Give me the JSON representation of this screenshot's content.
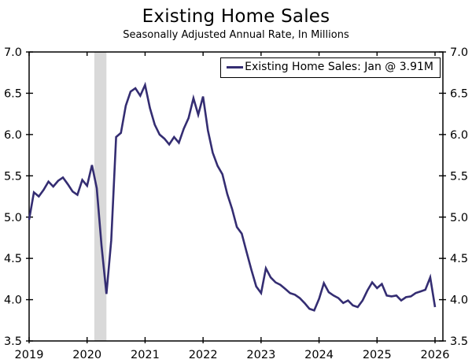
{
  "header": {
    "title": "Existing Home Sales",
    "subtitle": "Seasonally Adjusted Annual Rate, In Millions"
  },
  "legend": {
    "label": "Existing Home Sales: Jan @ 3.91M",
    "position": "top-right"
  },
  "colors": {
    "line": "#342d72",
    "recession_band": "#d9d9d9",
    "axis": "#000000",
    "text": "#000000",
    "background": "#ffffff"
  },
  "chart_data": {
    "type": "line",
    "title": "Existing Home Sales",
    "subtitle": "Seasonally Adjusted Annual Rate, In Millions",
    "xlabel": "",
    "ylabel": "",
    "x_tick_labels": [
      "2019",
      "2020",
      "2021",
      "2022",
      "2023",
      "2024",
      "2025",
      "2026"
    ],
    "y_tick_labels": [
      "7.0",
      "6.5",
      "6.0",
      "5.5",
      "5.0",
      "4.5",
      "4.0",
      "3.5"
    ],
    "ylim": [
      3.5,
      7.0
    ],
    "grid": false,
    "axis_box": true,
    "legend_entries": [
      "Existing Home Sales: Jan @ 3.91M"
    ],
    "recession_band": {
      "from": "2020-02",
      "to": "2020-04"
    },
    "series": [
      {
        "name": "Existing Home Sales",
        "frequency": "monthly",
        "start": "2019-01",
        "end": "2026-01",
        "last_point_label": "Jan @ 3.91M",
        "values": [
          4.97,
          5.3,
          5.25,
          5.33,
          5.43,
          5.37,
          5.44,
          5.48,
          5.4,
          5.31,
          5.27,
          5.45,
          5.38,
          5.63,
          5.35,
          4.65,
          4.07,
          4.72,
          5.97,
          6.02,
          6.35,
          6.52,
          6.56,
          6.47,
          6.6,
          6.32,
          6.12,
          6.0,
          5.95,
          5.88,
          5.97,
          5.9,
          6.07,
          6.2,
          6.44,
          6.24,
          6.46,
          6.05,
          5.78,
          5.62,
          5.52,
          5.28,
          5.1,
          4.88,
          4.8,
          4.58,
          4.36,
          4.16,
          4.08,
          4.38,
          4.27,
          4.21,
          4.18,
          4.13,
          4.08,
          4.06,
          4.02,
          3.96,
          3.89,
          3.87,
          4.01,
          4.2,
          4.09,
          4.05,
          4.02,
          3.96,
          3.99,
          3.93,
          3.91,
          3.99,
          4.11,
          4.21,
          4.14,
          4.19,
          4.05,
          4.04,
          4.05,
          3.99,
          4.03,
          4.04,
          4.08,
          4.1,
          4.12,
          4.27,
          3.91
        ]
      }
    ]
  }
}
